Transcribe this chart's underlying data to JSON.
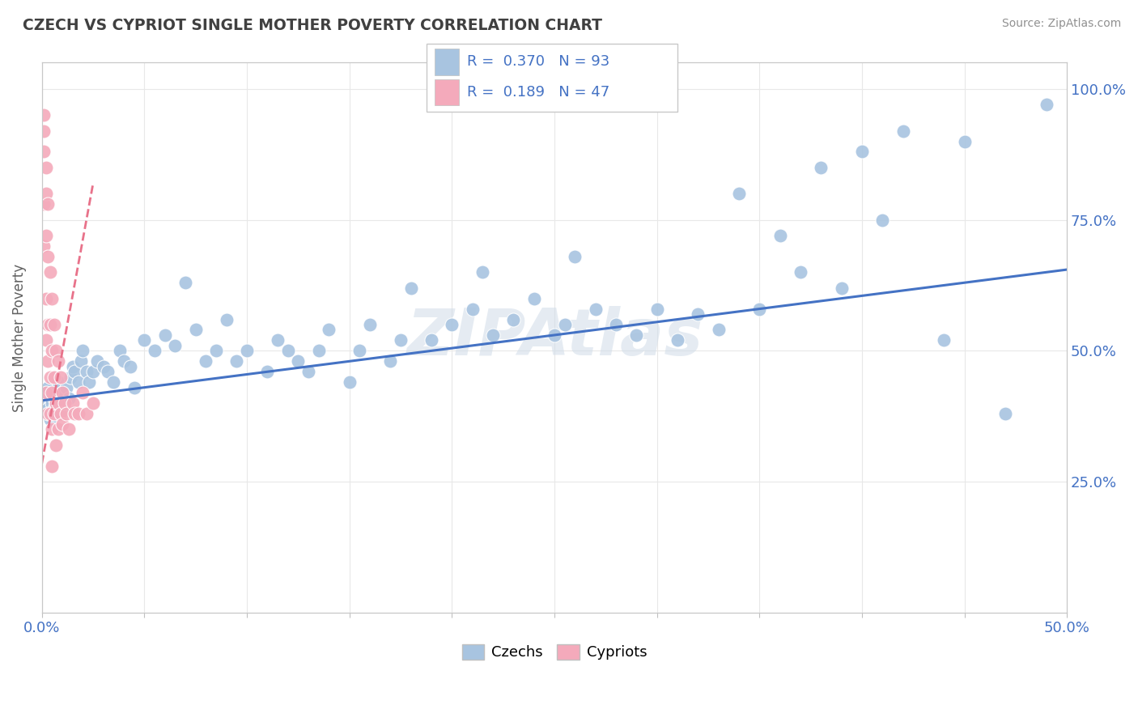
{
  "title": "CZECH VS CYPRIOT SINGLE MOTHER POVERTY CORRELATION CHART",
  "source": "Source: ZipAtlas.com",
  "ylabel": "Single Mother Poverty",
  "xlim": [
    0.0,
    0.5
  ],
  "ylim": [
    0.0,
    1.05
  ],
  "czech_R": 0.37,
  "czech_N": 93,
  "cypriot_R": 0.189,
  "cypriot_N": 47,
  "blue_color": "#A8C4E0",
  "pink_color": "#F4AABB",
  "blue_line_color": "#4472C4",
  "pink_line_color": "#E8728A",
  "axis_color": "#4472C4",
  "title_color": "#404040",
  "source_color": "#909090",
  "background_color": "#FFFFFF",
  "grid_color": "#E8E8E8",
  "watermark": "ZIPAtlas",
  "czechs_x": [
    0.001,
    0.002,
    0.002,
    0.003,
    0.003,
    0.004,
    0.004,
    0.005,
    0.005,
    0.006,
    0.006,
    0.007,
    0.007,
    0.008,
    0.008,
    0.009,
    0.009,
    0.01,
    0.01,
    0.011,
    0.012,
    0.013,
    0.014,
    0.015,
    0.016,
    0.018,
    0.019,
    0.02,
    0.022,
    0.023,
    0.025,
    0.027,
    0.03,
    0.032,
    0.035,
    0.038,
    0.04,
    0.043,
    0.045,
    0.05,
    0.055,
    0.06,
    0.065,
    0.07,
    0.075,
    0.08,
    0.085,
    0.09,
    0.095,
    0.1,
    0.11,
    0.115,
    0.12,
    0.125,
    0.13,
    0.135,
    0.14,
    0.15,
    0.155,
    0.16,
    0.17,
    0.175,
    0.18,
    0.19,
    0.2,
    0.21,
    0.215,
    0.22,
    0.23,
    0.24,
    0.25,
    0.255,
    0.26,
    0.27,
    0.28,
    0.29,
    0.3,
    0.31,
    0.32,
    0.33,
    0.34,
    0.35,
    0.36,
    0.37,
    0.38,
    0.39,
    0.4,
    0.41,
    0.42,
    0.44,
    0.45,
    0.47,
    0.49
  ],
  "czechs_y": [
    0.4,
    0.38,
    0.42,
    0.39,
    0.43,
    0.37,
    0.41,
    0.4,
    0.38,
    0.41,
    0.39,
    0.4,
    0.42,
    0.38,
    0.44,
    0.39,
    0.41,
    0.4,
    0.42,
    0.39,
    0.43,
    0.41,
    0.45,
    0.47,
    0.46,
    0.44,
    0.48,
    0.5,
    0.46,
    0.44,
    0.46,
    0.48,
    0.47,
    0.46,
    0.44,
    0.5,
    0.48,
    0.47,
    0.43,
    0.52,
    0.5,
    0.53,
    0.51,
    0.63,
    0.54,
    0.48,
    0.5,
    0.56,
    0.48,
    0.5,
    0.46,
    0.52,
    0.5,
    0.48,
    0.46,
    0.5,
    0.54,
    0.44,
    0.5,
    0.55,
    0.48,
    0.52,
    0.62,
    0.52,
    0.55,
    0.58,
    0.65,
    0.53,
    0.56,
    0.6,
    0.53,
    0.55,
    0.68,
    0.58,
    0.55,
    0.53,
    0.58,
    0.52,
    0.57,
    0.54,
    0.8,
    0.58,
    0.72,
    0.65,
    0.85,
    0.62,
    0.88,
    0.75,
    0.92,
    0.52,
    0.9,
    0.38,
    0.97
  ],
  "cypriots_x": [
    0.001,
    0.001,
    0.001,
    0.001,
    0.001,
    0.002,
    0.002,
    0.002,
    0.002,
    0.002,
    0.002,
    0.003,
    0.003,
    0.003,
    0.003,
    0.003,
    0.004,
    0.004,
    0.004,
    0.004,
    0.005,
    0.005,
    0.005,
    0.005,
    0.005,
    0.006,
    0.006,
    0.006,
    0.007,
    0.007,
    0.007,
    0.008,
    0.008,
    0.008,
    0.009,
    0.009,
    0.01,
    0.01,
    0.011,
    0.012,
    0.013,
    0.015,
    0.016,
    0.018,
    0.02,
    0.022,
    0.025
  ],
  "cypriots_y": [
    0.95,
    0.92,
    0.88,
    0.78,
    0.7,
    0.85,
    0.8,
    0.72,
    0.6,
    0.52,
    0.42,
    0.78,
    0.68,
    0.55,
    0.48,
    0.38,
    0.65,
    0.55,
    0.45,
    0.38,
    0.6,
    0.5,
    0.42,
    0.35,
    0.28,
    0.55,
    0.45,
    0.38,
    0.5,
    0.4,
    0.32,
    0.48,
    0.4,
    0.35,
    0.45,
    0.38,
    0.42,
    0.36,
    0.4,
    0.38,
    0.35,
    0.4,
    0.38,
    0.38,
    0.42,
    0.38,
    0.4
  ],
  "blue_trend_x0": 0.0,
  "blue_trend_y0": 0.405,
  "blue_trend_x1": 0.5,
  "blue_trend_y1": 0.655,
  "pink_trend_x0": 0.0,
  "pink_trend_y0": 0.285,
  "pink_trend_x1": 0.025,
  "pink_trend_y1": 0.82
}
